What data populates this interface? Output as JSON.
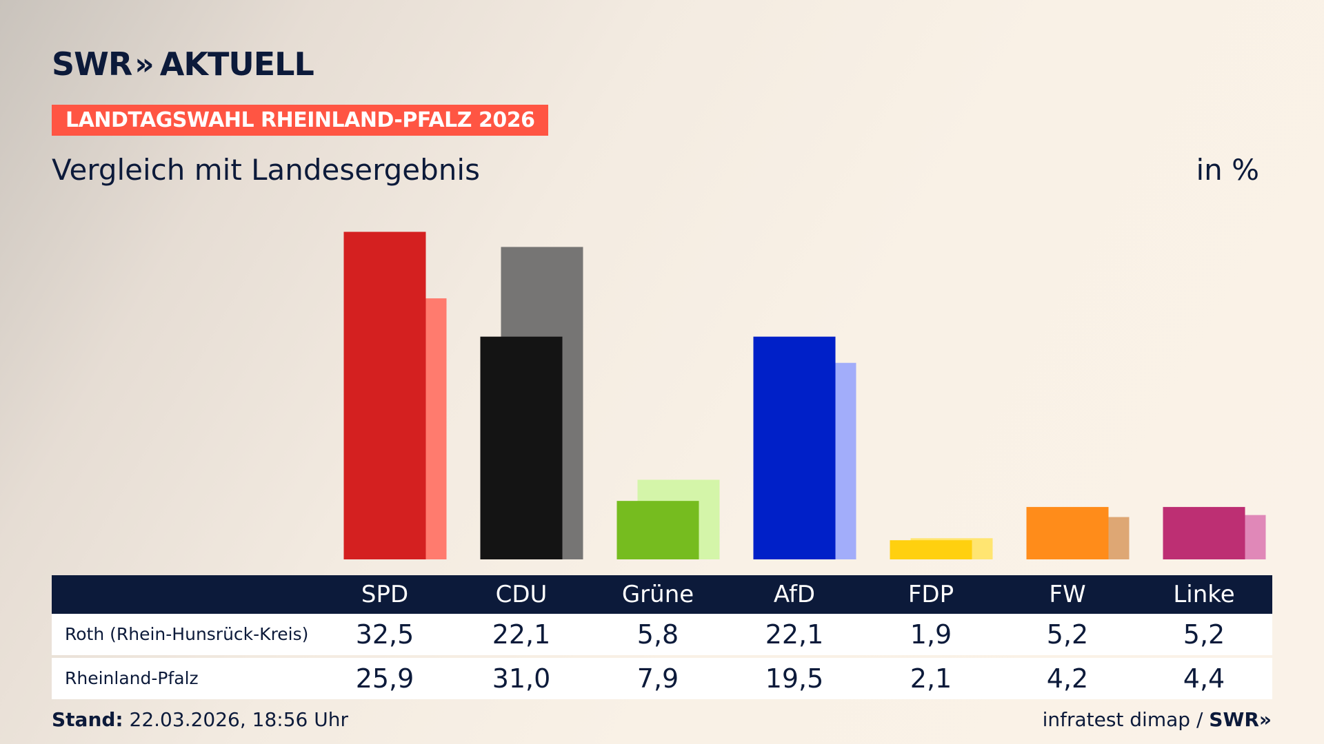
{
  "header": {
    "brand": "SWR",
    "brand_chevrons": "»",
    "brand_suffix": "AKTUELL",
    "badge": "LANDTAGSWAHL RHEINLAND-PFALZ 2026",
    "subtitle": "Vergleich mit Landesergebnis",
    "unit": "in %"
  },
  "table": {
    "rows": [
      {
        "label": "Roth (Rhein-Hunsrück-Kreis)",
        "values": [
          "32,5",
          "22,1",
          "5,8",
          "22,1",
          "1,9",
          "5,2",
          "5,2"
        ]
      },
      {
        "label": "Rheinland-Pfalz",
        "values": [
          "25,9",
          "31,0",
          "7,9",
          "19,5",
          "2,1",
          "4,2",
          "4,4"
        ]
      }
    ]
  },
  "footer": {
    "stand_label": "Stand:",
    "stand_value": "22.03.2026, 18:56 Uhr",
    "source": "infratest dimap /",
    "source_brand": "SWR»"
  },
  "chart_data": {
    "type": "bar",
    "categories": [
      "SPD",
      "CDU",
      "Grüne",
      "AfD",
      "FDP",
      "FW",
      "Linke"
    ],
    "series": [
      {
        "name": "Roth (Rhein-Hunsrück-Kreis)",
        "values": [
          32.5,
          22.1,
          5.8,
          22.1,
          1.9,
          5.2,
          5.2
        ]
      },
      {
        "name": "Rheinland-Pfalz",
        "values": [
          25.9,
          31.0,
          7.9,
          19.5,
          2.1,
          4.2,
          4.4
        ]
      }
    ],
    "colors": {
      "primary": [
        "#d42020",
        "#141414",
        "#76bc1f",
        "#0020c8",
        "#ffd00f",
        "#ff8c1a",
        "#bd2f73"
      ],
      "secondary": [
        "#ff7b6e",
        "#767574",
        "#d4f5a9",
        "#a2adfa",
        "#ffe571",
        "#dea774",
        "#e088b8"
      ]
    },
    "ylim": [
      0,
      33
    ],
    "grid": false,
    "legend": "none"
  }
}
